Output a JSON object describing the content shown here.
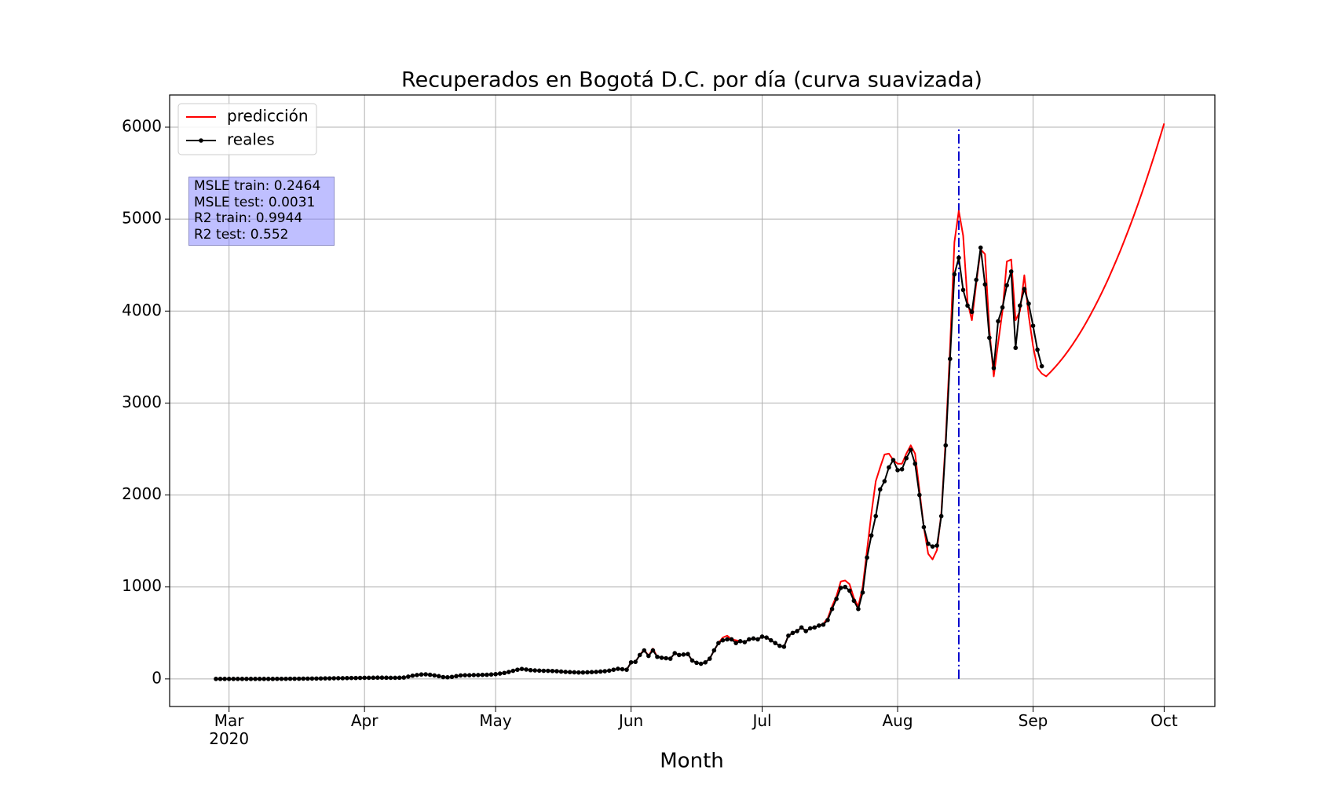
{
  "chart_data": {
    "type": "line",
    "title": "Recuperados en Bogotá D.C. por día (curva suavizada)",
    "x_label": "Month",
    "x": [
      -3,
      -2,
      -1,
      0,
      1,
      2,
      3,
      4,
      5,
      6,
      7,
      8,
      9,
      10,
      11,
      12,
      13,
      14,
      15,
      16,
      17,
      18,
      19,
      20,
      21,
      22,
      23,
      24,
      25,
      26,
      27,
      28,
      29,
      30,
      31,
      32,
      33,
      34,
      35,
      36,
      37,
      38,
      39,
      40,
      41,
      42,
      43,
      44,
      45,
      46,
      47,
      48,
      49,
      50,
      51,
      52,
      53,
      54,
      55,
      56,
      57,
      58,
      59,
      60,
      61,
      62,
      63,
      64,
      65,
      66,
      67,
      68,
      69,
      70,
      71,
      72,
      73,
      74,
      75,
      76,
      77,
      78,
      79,
      80,
      81,
      82,
      83,
      84,
      85,
      86,
      87,
      88,
      89,
      90,
      91,
      92,
      93,
      94,
      95,
      96,
      97,
      98,
      99,
      100,
      101,
      102,
      103,
      104,
      105,
      106,
      107,
      108,
      109,
      110,
      111,
      112,
      113,
      114,
      115,
      116,
      117,
      118,
      119,
      120,
      121,
      122,
      123,
      124,
      125,
      126,
      127,
      128,
      129,
      130,
      131,
      132,
      133,
      134,
      135,
      136,
      137,
      138,
      139,
      140,
      141,
      142,
      143,
      144,
      145,
      146,
      147,
      148,
      149,
      150,
      151,
      152,
      153,
      154,
      155,
      156,
      157,
      158,
      159,
      160,
      161,
      162,
      163,
      164,
      165,
      166,
      167,
      168,
      169,
      170,
      171,
      172,
      173,
      174,
      175,
      176,
      177,
      178,
      179,
      180,
      181,
      182,
      183,
      184,
      185,
      186,
      187,
      188,
      189,
      190,
      191,
      192,
      193,
      194,
      195,
      196,
      197,
      198,
      199,
      200,
      201,
      202,
      203,
      204,
      205,
      206,
      207,
      208,
      209,
      210,
      211,
      212,
      213,
      214
    ],
    "series": [
      {
        "name": "predicción",
        "color": "#ff0000",
        "marker": false,
        "values": [
          0,
          0,
          0,
          0,
          0,
          0,
          0,
          0,
          0,
          0,
          0,
          0,
          0,
          0,
          1,
          1,
          1,
          2,
          2,
          2,
          3,
          3,
          4,
          4,
          5,
          6,
          6,
          7,
          8,
          8,
          9,
          10,
          10,
          11,
          12,
          12,
          13,
          14,
          14,
          13,
          12,
          12,
          13,
          15,
          25,
          35,
          42,
          48,
          50,
          45,
          38,
          30,
          20,
          18,
          22,
          30,
          38,
          40,
          40,
          42,
          42,
          44,
          45,
          48,
          52,
          58,
          65,
          75,
          88,
          100,
          108,
          102,
          95,
          92,
          90,
          88,
          88,
          86,
          84,
          80,
          76,
          74,
          72,
          70,
          70,
          72,
          74,
          76,
          80,
          84,
          90,
          100,
          110,
          105,
          100,
          180,
          185,
          260,
          320,
          250,
          330,
          240,
          230,
          225,
          220,
          280,
          260,
          265,
          270,
          200,
          175,
          165,
          180,
          220,
          310,
          390,
          450,
          470,
          430,
          420,
          410,
          400,
          430,
          440,
          430,
          460,
          450,
          420,
          390,
          360,
          350,
          470,
          500,
          520,
          560,
          520,
          550,
          560,
          580,
          600,
          660,
          790,
          900,
          1060,
          1070,
          1030,
          880,
          790,
          1000,
          1400,
          1800,
          2150,
          2300,
          2440,
          2450,
          2380,
          2340,
          2340,
          2450,
          2540,
          2450,
          2050,
          1650,
          1360,
          1300,
          1400,
          1800,
          2600,
          3600,
          4750,
          5090,
          4820,
          4100,
          3900,
          4300,
          4670,
          4620,
          3800,
          3290,
          3650,
          4000,
          4540,
          4560,
          3900,
          4000,
          4390,
          3950,
          3620,
          3380,
          3320,
          3290,
          3337,
          3388,
          3443,
          3502,
          3566,
          3634,
          3706,
          3782,
          3863,
          3948,
          4037,
          4130,
          4227,
          4328,
          4436,
          4546,
          4660,
          4780,
          4903,
          5030,
          5162,
          5298,
          5438,
          5583,
          5731,
          5884,
          6040
        ]
      },
      {
        "name": "reales",
        "color": "#000000",
        "marker": true,
        "values": [
          0,
          0,
          0,
          0,
          0,
          0,
          0,
          0,
          0,
          0,
          0,
          0,
          0,
          0,
          1,
          1,
          1,
          2,
          2,
          2,
          3,
          3,
          4,
          4,
          5,
          6,
          6,
          7,
          8,
          8,
          9,
          10,
          10,
          11,
          12,
          12,
          13,
          14,
          14,
          13,
          12,
          12,
          13,
          15,
          25,
          35,
          42,
          48,
          50,
          45,
          38,
          30,
          20,
          18,
          22,
          30,
          38,
          40,
          40,
          42,
          42,
          44,
          45,
          48,
          52,
          58,
          65,
          75,
          88,
          100,
          108,
          102,
          95,
          92,
          90,
          88,
          88,
          86,
          84,
          80,
          76,
          74,
          72,
          70,
          70,
          72,
          74,
          76,
          80,
          84,
          90,
          100,
          110,
          105,
          100,
          180,
          185,
          260,
          310,
          250,
          310,
          240,
          230,
          225,
          220,
          280,
          260,
          265,
          270,
          200,
          175,
          165,
          180,
          220,
          310,
          390,
          420,
          430,
          430,
          390,
          410,
          400,
          430,
          440,
          430,
          460,
          450,
          420,
          390,
          360,
          350,
          470,
          500,
          520,
          560,
          520,
          550,
          560,
          580,
          590,
          640,
          760,
          870,
          990,
          1000,
          960,
          850,
          760,
          940,
          1320,
          1560,
          1770,
          2060,
          2150,
          2300,
          2380,
          2270,
          2280,
          2400,
          2490,
          2340,
          2000,
          1650,
          1470,
          1440,
          1450,
          1770,
          2540,
          3480,
          4400,
          4580,
          4230,
          4060,
          3990,
          4340,
          4690,
          4290,
          3710,
          3380,
          3890,
          4040,
          4280,
          4430,
          3600,
          4060,
          4240,
          4080,
          3840,
          3580,
          3400,
          null,
          null,
          null,
          null,
          null,
          null,
          null,
          null,
          null,
          null,
          null,
          null,
          null,
          null,
          null,
          null,
          null,
          null,
          null,
          null,
          null,
          null,
          null,
          null,
          null,
          null,
          null,
          null
        ]
      }
    ],
    "vline": {
      "x": 167,
      "ymin": 0,
      "ymax": 6000,
      "color": "#0000cc"
    },
    "annotation_lines": [
      "MSLE train: 0.2464",
      "MSLE test: 0.0031",
      "R2 train: 0.9944",
      "R2 test: 0.552"
    ],
    "xlim": [
      -13.6,
      225.6
    ],
    "xticks": [
      {
        "value": 0,
        "label": "Mar\n2020"
      },
      {
        "value": 31,
        "label": "Apr"
      },
      {
        "value": 61,
        "label": "May"
      },
      {
        "value": 92,
        "label": "Jun"
      },
      {
        "value": 122,
        "label": "Jul"
      },
      {
        "value": 153,
        "label": "Aug"
      },
      {
        "value": 184,
        "label": "Sep"
      },
      {
        "value": 214,
        "label": "Oct"
      }
    ],
    "ylim": [
      -300,
      6350
    ],
    "yticks": [
      0,
      1000,
      2000,
      3000,
      4000,
      5000,
      6000
    ],
    "grid": true,
    "legend": "upper left"
  }
}
